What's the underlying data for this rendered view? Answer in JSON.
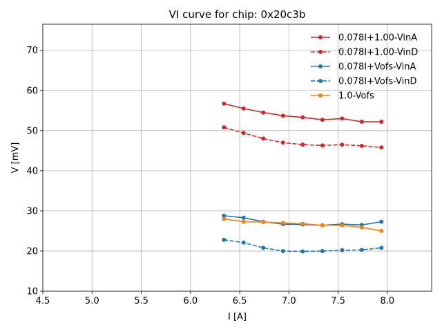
{
  "chart_data": {
    "type": "line",
    "title": "VI curve for chip: 0x20c3b",
    "xlabel": "I [A]",
    "ylabel": "V [mV]",
    "xlim": [
      4.5,
      8.45
    ],
    "ylim": [
      10,
      76.5
    ],
    "xticks": [
      4.5,
      5.0,
      5.5,
      6.0,
      6.5,
      7.0,
      7.5,
      8.0
    ],
    "xtick_labels": [
      "4.5",
      "5.0",
      "5.5",
      "6.0",
      "6.5",
      "7.0",
      "7.5",
      "8.0"
    ],
    "yticks": [
      10,
      20,
      30,
      40,
      50,
      60,
      70
    ],
    "ytick_labels": [
      "10",
      "20",
      "30",
      "40",
      "50",
      "60",
      "70"
    ],
    "grid": true,
    "legend_position": "top-right",
    "x": [
      6.34,
      6.54,
      6.74,
      6.94,
      7.14,
      7.34,
      7.54,
      7.74,
      7.94
    ],
    "series": [
      {
        "name": "0.078I+1.00-VinA",
        "color": "#d62728",
        "line_style": "solid",
        "values": [
          56.7,
          55.5,
          54.5,
          53.7,
          53.3,
          52.7,
          53.0,
          52.2,
          52.2
        ]
      },
      {
        "name": "0.078I+1.00-VinD",
        "color": "#d62728",
        "line_style": "dashed",
        "values": [
          50.8,
          49.4,
          48.0,
          47.0,
          46.5,
          46.3,
          46.5,
          46.2,
          45.8
        ]
      },
      {
        "name": "0.078I+Vofs-VinA",
        "color": "#1f77b4",
        "line_style": "solid",
        "values": [
          28.8,
          28.3,
          27.3,
          26.7,
          26.6,
          26.4,
          26.7,
          26.5,
          27.3
        ]
      },
      {
        "name": "0.078I+Vofs-VinD",
        "color": "#1f77b4",
        "line_style": "dashed",
        "values": [
          22.8,
          22.1,
          20.8,
          20.0,
          19.9,
          20.0,
          20.2,
          20.3,
          20.8
        ]
      },
      {
        "name": "1.0-Vofs",
        "color": "#ff7f0e",
        "line_style": "solid",
        "values": [
          28.0,
          27.3,
          27.2,
          27.0,
          26.8,
          26.4,
          26.4,
          25.9,
          25.0
        ]
      }
    ]
  }
}
